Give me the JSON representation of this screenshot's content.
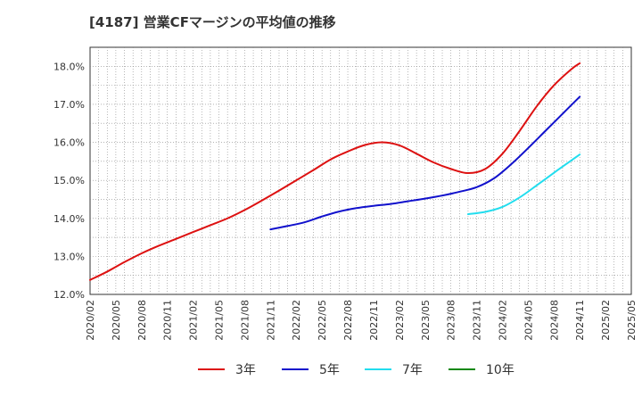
{
  "chart_data": {
    "type": "line",
    "title": "[4187]  営業CFマージンの平均値の推移",
    "xlabel": "",
    "ylabel": "",
    "ylim": [
      12.0,
      18.5
    ],
    "yticks": [
      "12.0%",
      "13.0%",
      "14.0%",
      "15.0%",
      "16.0%",
      "17.0%",
      "18.0%"
    ],
    "ytick_values": [
      12,
      13,
      14,
      15,
      16,
      17,
      18
    ],
    "xlim": [
      "2020/02",
      "2025/05"
    ],
    "xticks": [
      "2020/02",
      "2020/05",
      "2020/08",
      "2020/11",
      "2021/02",
      "2021/05",
      "2021/08",
      "2021/11",
      "2022/02",
      "2022/05",
      "2022/08",
      "2022/11",
      "2023/02",
      "2023/05",
      "2023/08",
      "2023/11",
      "2024/02",
      "2024/05",
      "2024/08",
      "2024/11",
      "2025/02",
      "2025/05"
    ],
    "grid": true,
    "legend_position": "bottom",
    "colors": {
      "3年": "#dd1111",
      "5年": "#1111cc",
      "7年": "#22ddee",
      "10年": "#118811"
    },
    "series": [
      {
        "name": "3年",
        "color": "#dd1111",
        "x": [
          "2020/02",
          "2020/04",
          "2020/06",
          "2020/08",
          "2020/10",
          "2020/12",
          "2021/02",
          "2021/04",
          "2021/06",
          "2021/08",
          "2021/10",
          "2021/12",
          "2022/02",
          "2022/04",
          "2022/06",
          "2022/08",
          "2022/10",
          "2022/12",
          "2023/02",
          "2023/04",
          "2023/06",
          "2023/08",
          "2023/10",
          "2023/12",
          "2024/02",
          "2024/04",
          "2024/06",
          "2024/08",
          "2024/10",
          "2024/11"
        ],
        "values": [
          12.38,
          12.6,
          12.85,
          13.08,
          13.28,
          13.46,
          13.64,
          13.82,
          14.0,
          14.22,
          14.47,
          14.73,
          15.0,
          15.27,
          15.55,
          15.76,
          15.93,
          16.0,
          15.92,
          15.7,
          15.47,
          15.3,
          15.19,
          15.3,
          15.7,
          16.3,
          16.95,
          17.5,
          17.92,
          18.08
        ]
      },
      {
        "name": "5年",
        "color": "#1111cc",
        "x": [
          "2021/11",
          "2022/01",
          "2022/03",
          "2022/05",
          "2022/07",
          "2022/09",
          "2022/11",
          "2023/01",
          "2023/03",
          "2023/05",
          "2023/07",
          "2023/09",
          "2023/11",
          "2024/01",
          "2024/03",
          "2024/05",
          "2024/07",
          "2024/09",
          "2024/11"
        ],
        "values": [
          13.71,
          13.8,
          13.9,
          14.05,
          14.18,
          14.27,
          14.33,
          14.38,
          14.45,
          14.52,
          14.6,
          14.7,
          14.82,
          15.05,
          15.42,
          15.85,
          16.3,
          16.75,
          17.2
        ]
      },
      {
        "name": "7年",
        "color": "#22ddee",
        "x": [
          "2023/10",
          "2023/12",
          "2024/02",
          "2024/04",
          "2024/06",
          "2024/08",
          "2024/10",
          "2024/11"
        ],
        "values": [
          14.11,
          14.17,
          14.3,
          14.55,
          14.87,
          15.2,
          15.52,
          15.68
        ]
      },
      {
        "name": "10年",
        "color": "#118811",
        "x": [],
        "values": []
      }
    ]
  }
}
